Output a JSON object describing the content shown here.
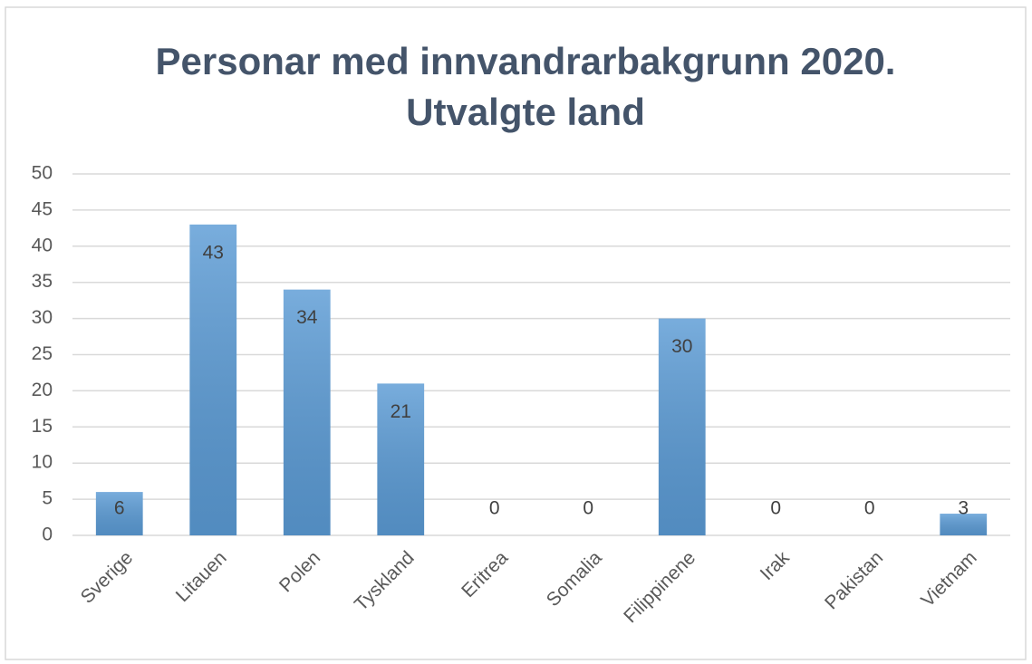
{
  "chart_data": {
    "type": "bar",
    "title": "Personar med innvandrarbakgrunn 2020. Utvalgte land",
    "categories": [
      "Sverige",
      "Litauen",
      "Polen",
      "Tyskland",
      "Eritrea",
      "Somalia",
      "Filippinene",
      "Irak",
      "Pakistan",
      "Vietnam"
    ],
    "values": [
      6,
      43,
      34,
      21,
      0,
      0,
      30,
      0,
      0,
      3
    ],
    "color": "#5b9bd5",
    "ylim": [
      0,
      50
    ],
    "yticks": [
      0,
      5,
      10,
      15,
      20,
      25,
      30,
      35,
      40,
      45,
      50
    ],
    "grid": true
  }
}
